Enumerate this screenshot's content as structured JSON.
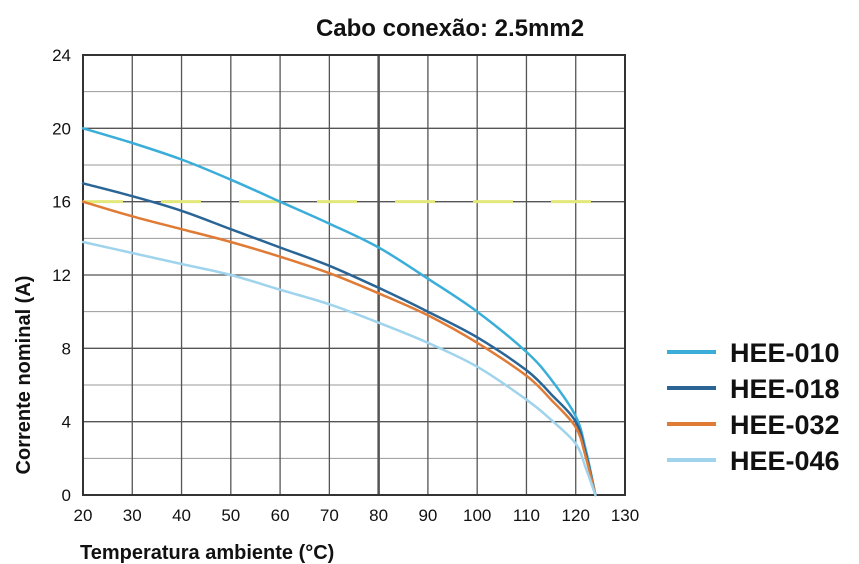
{
  "chart_data": {
    "type": "line",
    "title": "Cabo conexão: 2.5mm2",
    "xlabel": "Temperatura ambiente (°C)",
    "ylabel": "Corrente nominal (A)",
    "xlim": [
      20,
      130
    ],
    "ylim": [
      0,
      24
    ],
    "x_ticks": [
      "20",
      "30",
      "40",
      "50",
      "60",
      "70",
      "80",
      "90",
      "100",
      "110",
      "120",
      "130"
    ],
    "y_ticks": [
      "0",
      "4",
      "8",
      "12",
      "16",
      "20",
      "24"
    ],
    "grid": true,
    "legend_position": "right",
    "reference_line": {
      "y": 16,
      "style": "dashed",
      "color": "#e3e87a"
    },
    "series": [
      {
        "name": "HEE-010",
        "color": "#3aaed8",
        "x": [
          20,
          30,
          40,
          50,
          60,
          70,
          80,
          90,
          100,
          110,
          115,
          120,
          122,
          124
        ],
        "y": [
          20,
          19.2,
          18.3,
          17.2,
          16,
          14.8,
          13.5,
          11.8,
          10,
          7.8,
          6.3,
          4.3,
          2.5,
          0
        ]
      },
      {
        "name": "HEE-018",
        "color": "#2a6596",
        "x": [
          20,
          30,
          40,
          50,
          60,
          70,
          80,
          90,
          100,
          110,
          115,
          120,
          122,
          124
        ],
        "y": [
          17,
          16.3,
          15.5,
          14.5,
          13.5,
          12.5,
          11.3,
          10,
          8.6,
          6.8,
          5.5,
          4,
          2.3,
          0
        ]
      },
      {
        "name": "HEE-032",
        "color": "#e07b35",
        "x": [
          20,
          30,
          40,
          50,
          60,
          70,
          80,
          90,
          100,
          110,
          115,
          120,
          122,
          124
        ],
        "y": [
          16,
          15.2,
          14.5,
          13.8,
          13,
          12.1,
          11,
          9.8,
          8.3,
          6.5,
          5.2,
          3.7,
          2.1,
          0
        ]
      },
      {
        "name": "HEE-046",
        "color": "#9fd4ec",
        "x": [
          20,
          30,
          40,
          50,
          60,
          70,
          80,
          90,
          100,
          110,
          115,
          120,
          122,
          124
        ],
        "y": [
          13.8,
          13.2,
          12.6,
          12,
          11.2,
          10.4,
          9.4,
          8.3,
          7,
          5.2,
          4.1,
          2.8,
          1.5,
          0
        ]
      }
    ]
  },
  "colors": {
    "grid": "#555555",
    "axis_text": "#111111",
    "background": "#ffffff"
  }
}
